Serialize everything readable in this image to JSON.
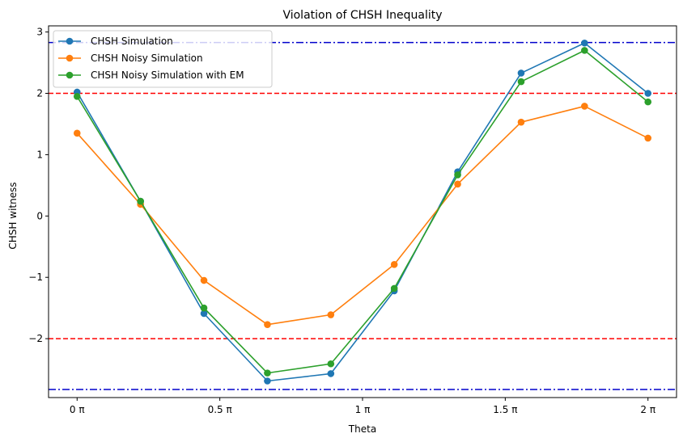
{
  "chart_data": {
    "type": "line",
    "title": "Violation of CHSH Inequality",
    "xlabel": "Theta",
    "ylabel": "CHSH witness",
    "xlim": [
      -0.1,
      2.1
    ],
    "ylim": [
      -2.96,
      3.1
    ],
    "x_ticks": [
      {
        "value": 0,
        "label": "0 π"
      },
      {
        "value": 0.5,
        "label": "0.5 π"
      },
      {
        "value": 1,
        "label": "1 π"
      },
      {
        "value": 1.5,
        "label": "1.5 π"
      },
      {
        "value": 2,
        "label": "2 π"
      }
    ],
    "y_ticks": [
      {
        "value": -2,
        "label": "−2"
      },
      {
        "value": -1,
        "label": "−1"
      },
      {
        "value": 0,
        "label": "0"
      },
      {
        "value": 1,
        "label": "1"
      },
      {
        "value": 2,
        "label": "2"
      },
      {
        "value": 3,
        "label": "3"
      }
    ],
    "x": [
      0,
      0.2222,
      0.4444,
      0.6667,
      0.8889,
      1.1111,
      1.3333,
      1.5556,
      1.7778,
      2.0
    ],
    "series": [
      {
        "name": "CHSH Simulation",
        "color": "#1f77b4",
        "values": [
          2.02,
          0.24,
          -1.59,
          -2.69,
          -2.57,
          -1.22,
          0.72,
          2.33,
          2.82,
          2.0
        ]
      },
      {
        "name": "CHSH Noisy Simulation",
        "color": "#ff7f0e",
        "values": [
          1.35,
          0.19,
          -1.05,
          -1.77,
          -1.61,
          -0.79,
          0.52,
          1.53,
          1.79,
          1.27
        ]
      },
      {
        "name": "CHSH Noisy Simulation with EM",
        "color": "#2ca02c",
        "values": [
          1.95,
          0.24,
          -1.5,
          -2.56,
          -2.41,
          -1.18,
          0.67,
          2.19,
          2.7,
          1.86
        ]
      }
    ],
    "reference_lines": [
      {
        "y": 2,
        "color": "#ff0000",
        "style": "dashed"
      },
      {
        "y": -2,
        "color": "#ff0000",
        "style": "dashed"
      },
      {
        "y": 2.8284,
        "color": "#0000cc",
        "style": "dashdot"
      },
      {
        "y": -2.8284,
        "color": "#0000cc",
        "style": "dashdot"
      }
    ],
    "grid": false,
    "legend_position": "top-left"
  }
}
